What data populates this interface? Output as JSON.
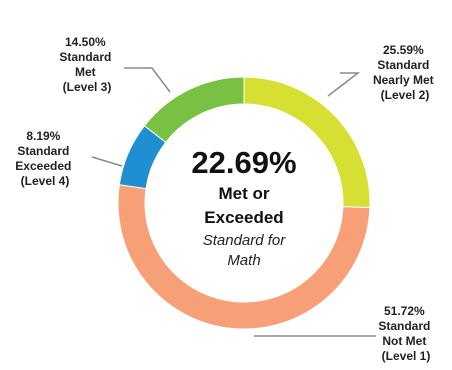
{
  "chart_data": {
    "type": "pie",
    "donut": true,
    "slices": [
      {
        "id": "level2",
        "value": 25.59,
        "color": "#d6e033",
        "label_lines": [
          "25.59%",
          "Standard",
          "Nearly Met",
          "(Level 2)"
        ]
      },
      {
        "id": "level1",
        "value": 51.72,
        "color": "#f7a077",
        "label_lines": [
          "51.72%",
          "Standard",
          "Not Met",
          "(Level 1)"
        ]
      },
      {
        "id": "level4",
        "value": 8.19,
        "color": "#1f8fd1",
        "label_lines": [
          "8.19%",
          "Standard",
          "Exceeded",
          "(Level 4)"
        ]
      },
      {
        "id": "level3",
        "value": 14.5,
        "color": "#79c142",
        "label_lines": [
          "14.50%",
          "Standard",
          "Met",
          "(Level 3)"
        ]
      }
    ],
    "center": {
      "value": "22.69%",
      "line1": "Met or",
      "line2": "Exceeded",
      "line3": "Standard for",
      "line4": "Math"
    }
  }
}
